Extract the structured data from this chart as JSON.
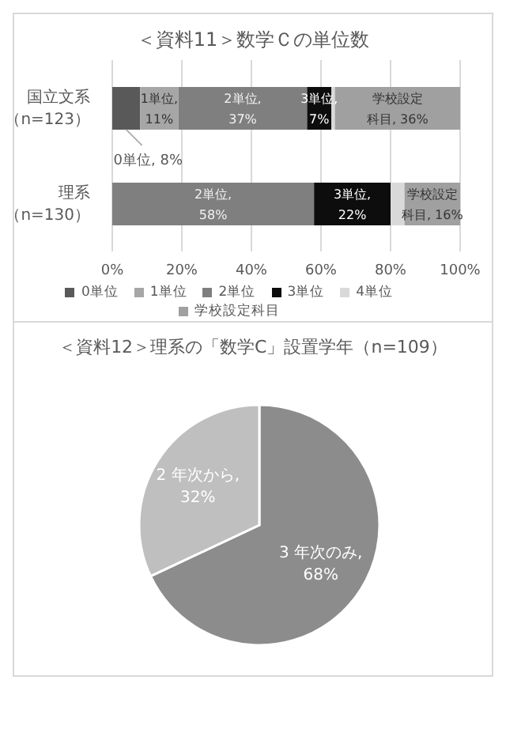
{
  "chart_data": [
    {
      "type": "bar",
      "title": "＜資料11＞数学Ｃの単位数",
      "orientation": "horizontal",
      "stacked": true,
      "categories": [
        "国立文系（n=123）",
        "理系（n=130）"
      ],
      "series": [
        {
          "name": "0単位",
          "color": "#595959",
          "values": [
            8,
            0
          ],
          "value_labels": [
            "0単位, 8%",
            null
          ]
        },
        {
          "name": "1単位",
          "color": "#a6a6a6",
          "values": [
            11,
            0
          ],
          "value_labels": [
            "1単位, 11%",
            null
          ]
        },
        {
          "name": "2単位",
          "color": "#7f7f7f",
          "values": [
            37,
            58
          ],
          "value_labels": [
            "2単位, 37%",
            "2単位, 58%"
          ]
        },
        {
          "name": "3単位",
          "color": "#0d0d0d",
          "values": [
            7,
            22
          ],
          "value_labels": [
            "3単位, 7%",
            "3単位, 22%"
          ]
        },
        {
          "name": "4単位",
          "color": "#d9d9d9",
          "values": [
            1,
            4
          ],
          "value_labels": [
            null,
            null
          ]
        },
        {
          "name": "学校設定科目",
          "color": "#a0a0a0",
          "values": [
            36,
            16
          ],
          "value_labels": [
            "学校設定科目, 36%",
            "学校設定科目, 16%"
          ]
        }
      ],
      "xlim": [
        0,
        100
      ],
      "xticks": [
        {
          "value": 0,
          "label": "0%"
        },
        {
          "value": 20,
          "label": "20%"
        },
        {
          "value": 40,
          "label": "40%"
        },
        {
          "value": 60,
          "label": "60%"
        },
        {
          "value": 80,
          "label": "80%"
        },
        {
          "value": 100,
          "label": "100%"
        }
      ],
      "grid": "x",
      "legend": "bottom"
    },
    {
      "type": "pie",
      "title": "＜資料12＞理系の「数学C」設置学年（n=109）",
      "categories": [
        null,
        null
      ],
      "values": [
        68,
        32
      ],
      "colors": [
        "#8c8c8c",
        "#bfbfbf"
      ],
      "value_labels": [
        "3 年次のみ, 68%",
        "2 年次から, 32%"
      ],
      "legend": false
    }
  ]
}
